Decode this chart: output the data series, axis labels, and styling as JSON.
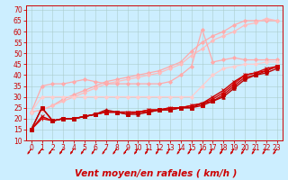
{
  "bg_color": "#cceeff",
  "grid_color": "#aacccc",
  "xlim": [
    -0.5,
    23.5
  ],
  "ylim": [
    10,
    72
  ],
  "yticks": [
    10,
    15,
    20,
    25,
    30,
    35,
    40,
    45,
    50,
    55,
    60,
    65,
    70
  ],
  "xticks": [
    0,
    1,
    2,
    3,
    4,
    5,
    6,
    7,
    8,
    9,
    10,
    11,
    12,
    13,
    14,
    15,
    16,
    17,
    18,
    19,
    20,
    21,
    22,
    23
  ],
  "xlabel": "Vent moyen/en rafales ( km/h )",
  "xlabel_color": "#cc0000",
  "xlabel_fontsize": 7.5,
  "tick_fontsize": 5.5,
  "series": [
    {
      "x": [
        0,
        1,
        2,
        3,
        4,
        5,
        6,
        7,
        8,
        9,
        10,
        11,
        12,
        13,
        14,
        15,
        16,
        17,
        18,
        19,
        20,
        21,
        22,
        23
      ],
      "y": [
        23,
        24,
        26,
        29,
        31,
        33,
        35,
        37,
        38,
        39,
        40,
        41,
        42,
        44,
        46,
        51,
        55,
        58,
        60,
        63,
        65,
        65,
        65,
        65
      ],
      "color": "#ffaaaa",
      "lw": 0.9,
      "marker": "D",
      "ms": 2.0,
      "style": "-"
    },
    {
      "x": [
        0,
        1,
        2,
        3,
        4,
        5,
        6,
        7,
        8,
        9,
        10,
        11,
        12,
        13,
        14,
        15,
        16,
        17,
        18,
        19,
        20,
        21,
        22,
        23
      ],
      "y": [
        23,
        24,
        26,
        28,
        30,
        32,
        34,
        36,
        37,
        38,
        39,
        40,
        41,
        43,
        45,
        49,
        52,
        56,
        58,
        60,
        63,
        64,
        66,
        65
      ],
      "color": "#ffbbbb",
      "lw": 0.9,
      "marker": "D",
      "ms": 2.0,
      "style": "-"
    },
    {
      "x": [
        0,
        1,
        2,
        3,
        4,
        5,
        6,
        7,
        8,
        9,
        10,
        11,
        12,
        13,
        14,
        15,
        16,
        17,
        18,
        19,
        20,
        21,
        22,
        23
      ],
      "y": [
        23,
        35,
        36,
        36,
        37,
        38,
        37,
        36,
        36,
        36,
        36,
        36,
        36,
        37,
        40,
        44,
        61,
        46,
        47,
        48,
        47,
        47,
        47,
        47
      ],
      "color": "#ffaaaa",
      "lw": 0.9,
      "marker": "D",
      "ms": 2.0,
      "style": "-"
    },
    {
      "x": [
        0,
        1,
        2,
        3,
        4,
        5,
        6,
        7,
        8,
        9,
        10,
        11,
        12,
        13,
        14,
        15,
        16,
        17,
        18,
        19,
        20,
        21,
        22,
        23
      ],
      "y": [
        23,
        30,
        30,
        30,
        30,
        30,
        30,
        30,
        30,
        30,
        30,
        30,
        30,
        30,
        30,
        30,
        35,
        40,
        43,
        44,
        45,
        45,
        46,
        46
      ],
      "color": "#ffcccc",
      "lw": 0.9,
      "marker": "D",
      "ms": 2.0,
      "style": "-"
    },
    {
      "x": [
        0,
        1,
        2,
        3,
        4,
        5,
        6,
        7,
        8,
        9,
        10,
        11,
        12,
        13,
        14,
        15,
        16,
        17,
        18,
        19,
        20,
        21,
        22,
        23
      ],
      "y": [
        15,
        20,
        19,
        20,
        20,
        21,
        22,
        23,
        23,
        23,
        23,
        24,
        24,
        25,
        25,
        26,
        27,
        29,
        32,
        36,
        40,
        41,
        42,
        44
      ],
      "color": "#dd0000",
      "lw": 1.0,
      "marker": "+",
      "ms": 3.5,
      "style": "-"
    },
    {
      "x": [
        0,
        1,
        2,
        3,
        4,
        5,
        6,
        7,
        8,
        9,
        10,
        11,
        12,
        13,
        14,
        15,
        16,
        17,
        18,
        19,
        20,
        21,
        22,
        23
      ],
      "y": [
        15,
        21,
        19,
        20,
        20,
        21,
        22,
        23,
        23,
        23,
        23,
        24,
        24,
        25,
        25,
        26,
        27,
        30,
        33,
        37,
        40,
        41,
        43,
        44
      ],
      "color": "#cc0000",
      "lw": 1.0,
      "marker": "x",
      "ms": 3.5,
      "style": "-"
    },
    {
      "x": [
        0,
        1,
        2,
        3,
        4,
        5,
        6,
        7,
        8,
        9,
        10,
        11,
        12,
        13,
        14,
        15,
        16,
        17,
        18,
        19,
        20,
        21,
        22,
        23
      ],
      "y": [
        15,
        25,
        19,
        20,
        20,
        21,
        22,
        23,
        23,
        22,
        23,
        23,
        24,
        24,
        25,
        25,
        26,
        28,
        31,
        35,
        39,
        40,
        42,
        44
      ],
      "color": "#cc0000",
      "lw": 1.0,
      "marker": "s",
      "ms": 2.5,
      "style": "-"
    },
    {
      "x": [
        0,
        1,
        2,
        3,
        4,
        5,
        6,
        7,
        8,
        9,
        10,
        11,
        12,
        13,
        14,
        15,
        16,
        17,
        18,
        19,
        20,
        21,
        22,
        23
      ],
      "y": [
        15,
        25,
        19,
        20,
        20,
        21,
        22,
        24,
        23,
        22,
        22,
        23,
        24,
        24,
        25,
        25,
        27,
        28,
        30,
        34,
        38,
        40,
        41,
        43
      ],
      "color": "#bb0000",
      "lw": 1.0,
      "marker": "^",
      "ms": 2.5,
      "style": "-"
    }
  ],
  "arrow_color": "#cc0000",
  "spine_color": "#cc0000"
}
